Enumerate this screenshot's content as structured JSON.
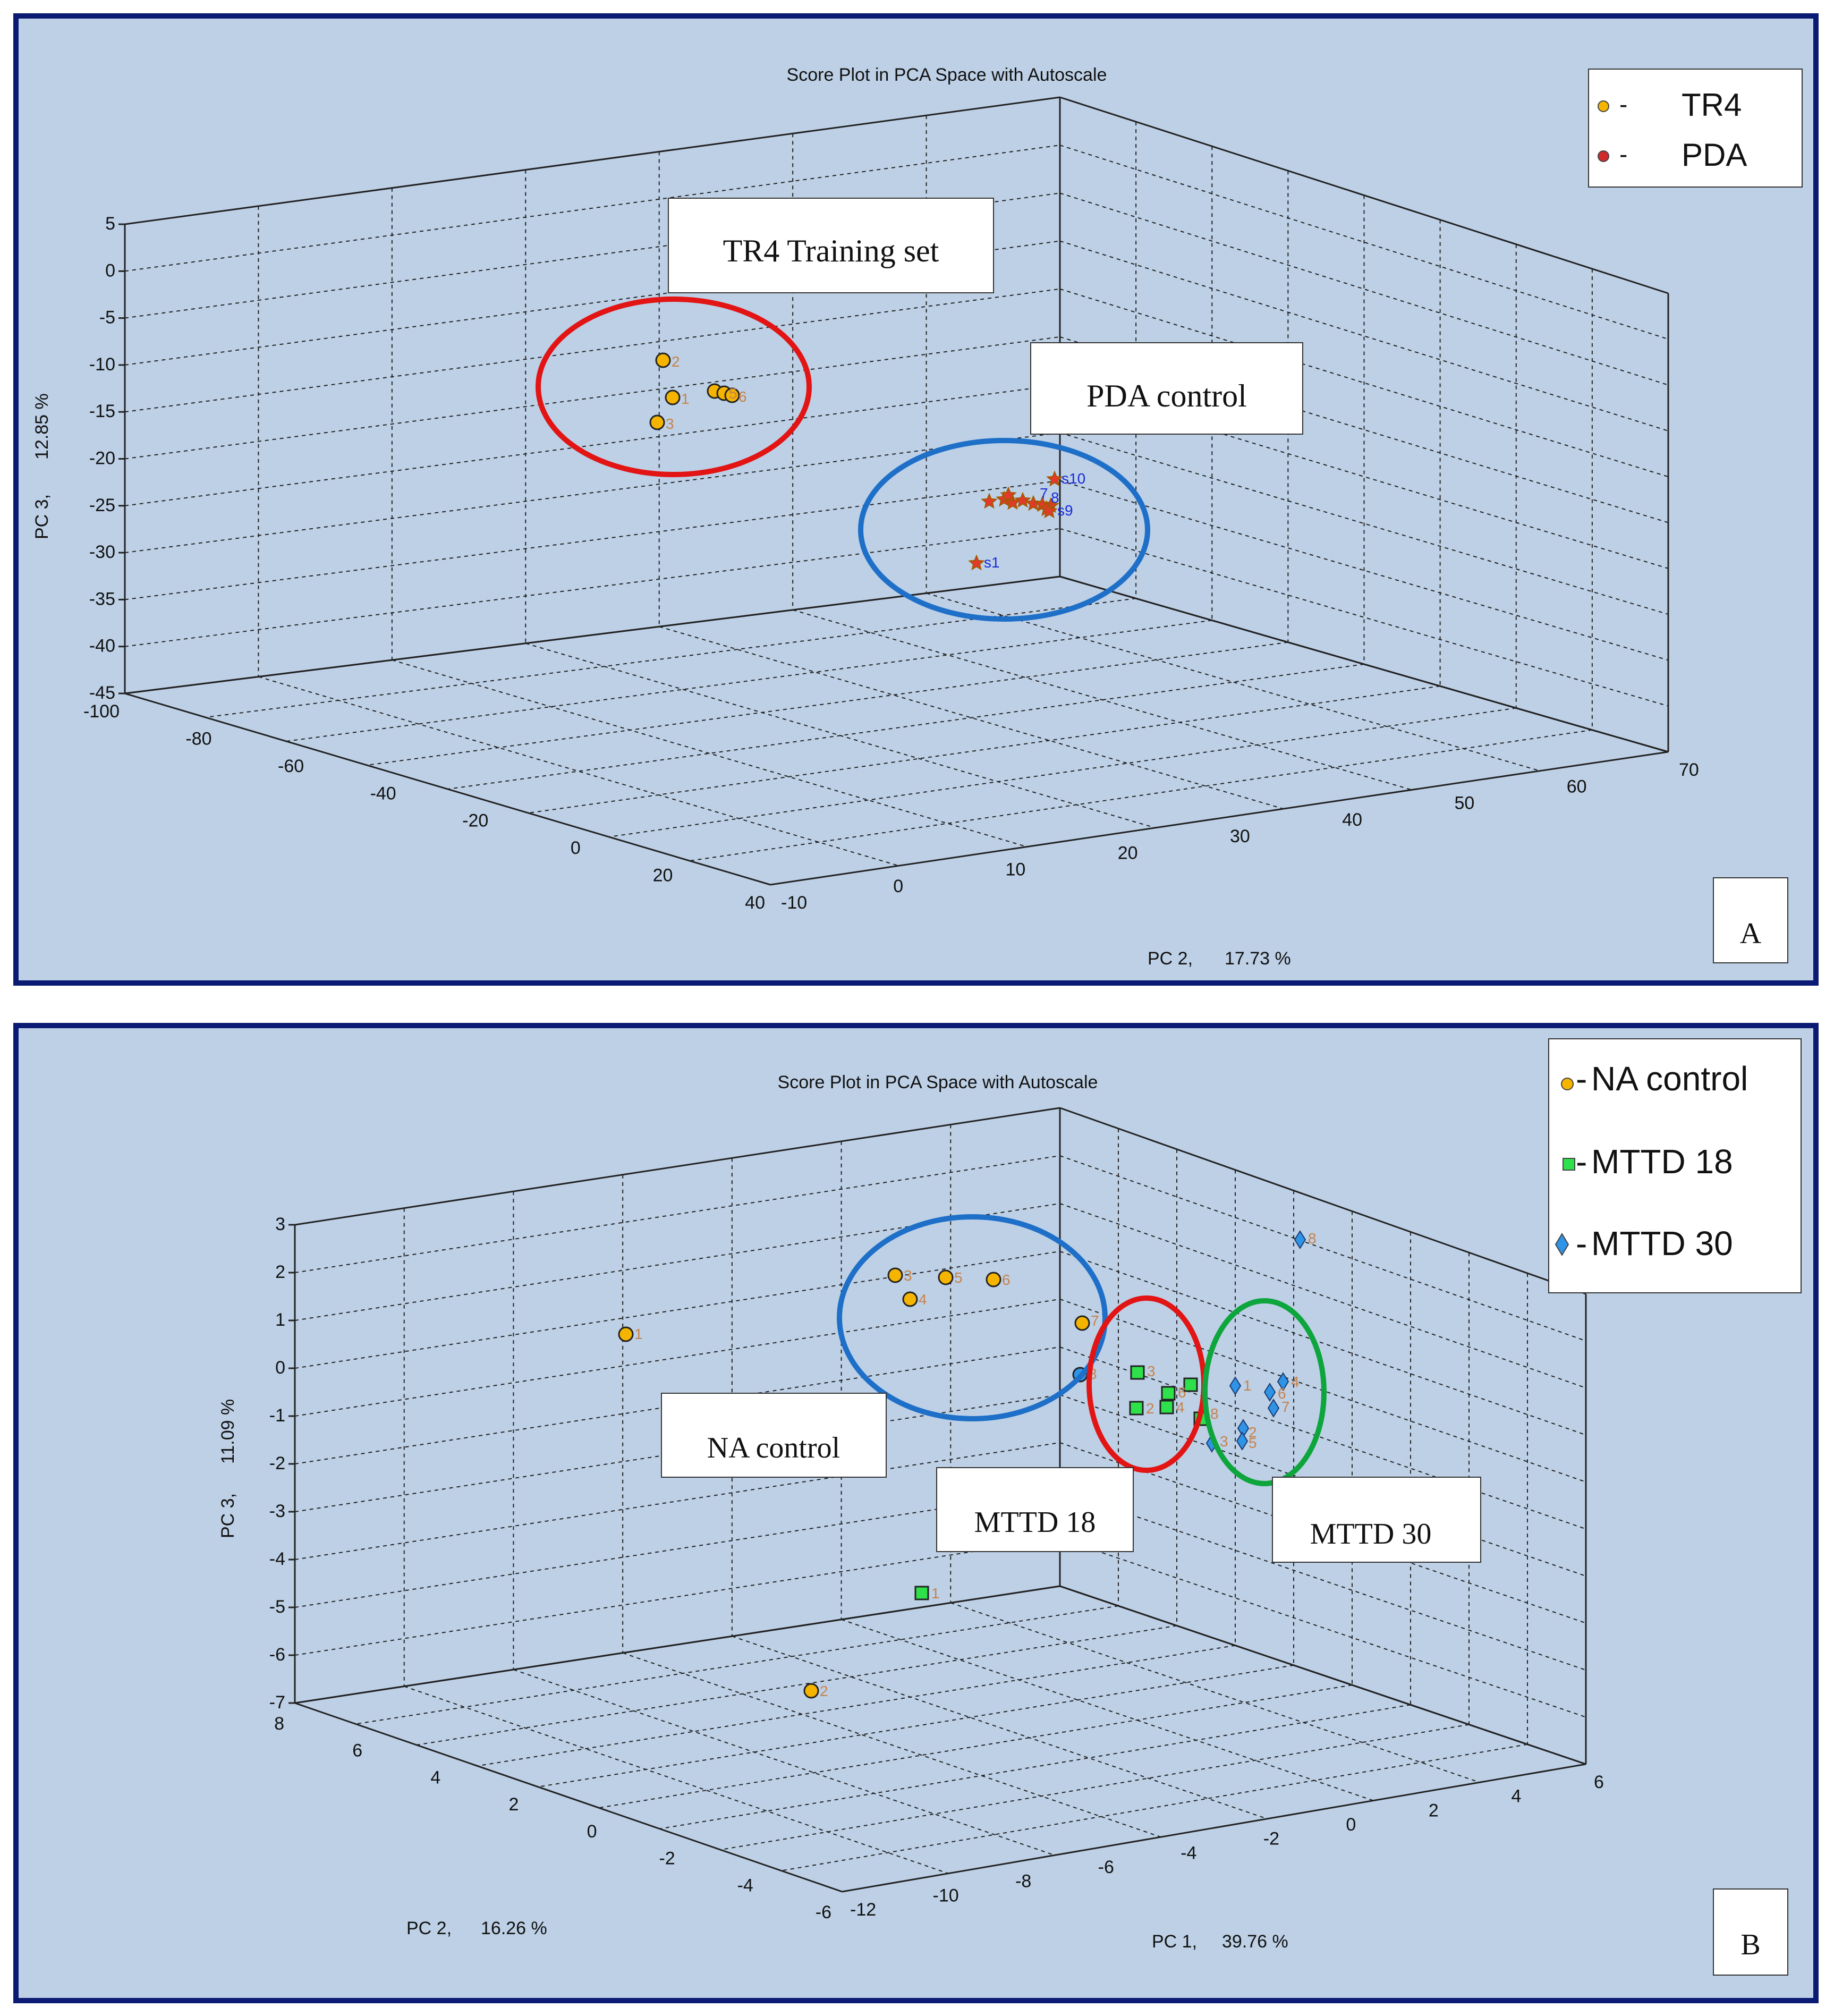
{
  "colors": {
    "panel_bg": "#bdd0e6",
    "panel_border": "#0b1a73",
    "tr4": "#f5b400",
    "pda": "#e23a2a",
    "pda_label": "#1a2bd8",
    "na": "#f5b400",
    "mttd18": "#2ee04a",
    "mttd30": "#2f93e6",
    "red_ellipse": "#e21414",
    "blue_ellipse": "#1e6fc8",
    "green_ellipse": "#0ea53c",
    "point_label": "#c8824a"
  },
  "panels": {
    "a": {
      "title": "Score Plot in PCA Space with Autoscale",
      "letter": "A",
      "legend": [
        {
          "marker": "-",
          "label": "TR4"
        },
        {
          "marker": "-",
          "label": "PDA"
        }
      ],
      "annotations": {
        "tr4": "TR4 Training set",
        "pda": "PDA control"
      },
      "axes": {
        "z_label_name": "PC 3,",
        "z_label_pct": "12.85 %",
        "x_label_name": "PC 2,",
        "x_label_pct": "17.73 %",
        "z_ticks": [
          "5",
          "0",
          "-5",
          "-10",
          "-15",
          "-20",
          "-25",
          "-30",
          "-35",
          "-40",
          "-45"
        ],
        "left_ticks": [
          "-100",
          "-80",
          "-60",
          "-40",
          "-20",
          "0",
          "20",
          "40"
        ],
        "right_ticks": [
          "-10",
          "0",
          "10",
          "20",
          "30",
          "40",
          "50",
          "60",
          "70"
        ]
      },
      "tr4_labels": [
        "2",
        "1",
        "5",
        "6",
        "3"
      ],
      "pda_labels": [
        "s10",
        "s9",
        "s1",
        "7",
        "8"
      ]
    },
    "b": {
      "title": "Score Plot in PCA Space with Autoscale",
      "letter": "B",
      "legend": [
        {
          "marker": "-",
          "label": "NA control"
        },
        {
          "marker": "-",
          "label": "MTTD 18"
        },
        {
          "marker": "-",
          "label": "MTTD 30"
        }
      ],
      "annotations": {
        "na": "NA control",
        "m18": "MTTD 18",
        "m30": "MTTD 30"
      },
      "axes": {
        "z_label_name": "PC 3,",
        "z_label_pct": "11.09 %",
        "y_label_name": "PC 2,",
        "y_label_pct": "16.26 %",
        "x_label_name": "PC 1,",
        "x_label_pct": "39.76 %",
        "z_ticks": [
          "3",
          "2",
          "1",
          "0",
          "-1",
          "-2",
          "-3",
          "-4",
          "-5",
          "-6",
          "-7"
        ],
        "left_ticks": [
          "8",
          "6",
          "4",
          "2",
          "0",
          "-2",
          "-4",
          "-6"
        ],
        "right_ticks": [
          "-12",
          "-10",
          "-8",
          "-6",
          "-4",
          "-2",
          "0",
          "2",
          "4",
          "6"
        ]
      },
      "na_labels": [
        "3",
        "5",
        "6",
        "4",
        "7",
        "8",
        "2",
        "1"
      ],
      "m18_labels": [
        "3",
        "2",
        "4",
        "6",
        "8",
        "1"
      ],
      "m30_labels": [
        "8",
        "1",
        "4",
        "6",
        "7",
        "2",
        "5",
        "3"
      ]
    }
  },
  "chart_data": [
    {
      "type": "scatter",
      "title": "Score Plot in PCA Space with Autoscale",
      "projection": "3d",
      "xlabel": "PC 2,   17.73 %",
      "ylabel": "",
      "zlabel": "PC 3,   12.85 %",
      "xlim": [
        -10,
        70
      ],
      "ylim": [
        -100,
        40
      ],
      "zlim": [
        -45,
        5
      ],
      "grid": true,
      "legend": "top-right",
      "series": [
        {
          "name": "TR4",
          "marker": "circle",
          "labels": [
            "1",
            "2",
            "3",
            "5",
            "6"
          ]
        },
        {
          "name": "PDA",
          "marker": "star",
          "labels": [
            "s1",
            "7",
            "8",
            "s9",
            "s10"
          ]
        }
      ]
    },
    {
      "type": "scatter",
      "title": "Score Plot in PCA Space with Autoscale",
      "projection": "3d",
      "xlabel": "PC 1,   39.76 %",
      "ylabel": "PC 2,   16.26 %",
      "zlabel": "PC 3,   11.09 %",
      "xlim": [
        -12,
        6
      ],
      "ylim": [
        -6,
        8
      ],
      "zlim": [
        -7,
        3
      ],
      "grid": true,
      "legend": "top-right",
      "series": [
        {
          "name": "NA control",
          "marker": "circle",
          "labels": [
            "1",
            "2",
            "3",
            "4",
            "5",
            "6",
            "7",
            "8"
          ]
        },
        {
          "name": "MTTD 18",
          "marker": "square",
          "labels": [
            "1",
            "2",
            "3",
            "4",
            "6",
            "8"
          ]
        },
        {
          "name": "MTTD 30",
          "marker": "diamond",
          "labels": [
            "1",
            "2",
            "3",
            "4",
            "5",
            "6",
            "7",
            "8"
          ]
        }
      ]
    }
  ]
}
